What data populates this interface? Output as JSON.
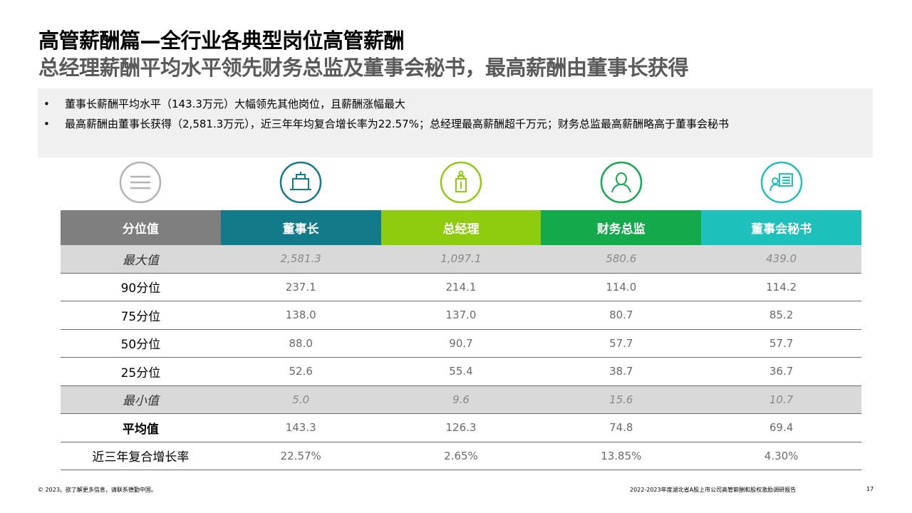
{
  "header": {
    "title": "高管薪酬篇—全行业各典型岗位高管薪酬",
    "subtitle": "总经理薪酬平均水平领先财务总监及董事会秘书，最高薪酬由董事长获得"
  },
  "bullets": [
    "董事长薪酬平均水平（143.3万元）大幅领先其他岗位，且薪酬涨幅最大",
    "最高薪酬由董事长获得（2,581.3万元），近三年年均复合增长率为22.57%；总经理最高薪酬超千万元；财务总监最高薪酬略高于董事会秘书"
  ],
  "icons": [
    "menu-icon",
    "chairman-icon",
    "general-manager-icon",
    "cfo-icon",
    "board-secretary-icon"
  ],
  "table": {
    "columns": [
      {
        "label": "分位值",
        "color": "#7f7f7f"
      },
      {
        "label": "董事长",
        "color": "#137a8a"
      },
      {
        "label": "总经理",
        "color": "#8fcb0f"
      },
      {
        "label": "财务总监",
        "color": "#14a94a"
      },
      {
        "label": "董事会秘书",
        "color": "#1ec0bb"
      }
    ],
    "rows": [
      {
        "label": "最大值",
        "values": [
          "2,581.3",
          "1,097.1",
          "580.6",
          "439.0"
        ]
      },
      {
        "label": "90分位",
        "values": [
          "237.1",
          "214.1",
          "114.0",
          "114.2"
        ]
      },
      {
        "label": "75分位",
        "values": [
          "138.0",
          "137.0",
          "80.7",
          "85.2"
        ]
      },
      {
        "label": "50分位",
        "values": [
          "88.0",
          "90.7",
          "57.7",
          "57.7"
        ]
      },
      {
        "label": "25分位",
        "values": [
          "52.6",
          "55.4",
          "38.7",
          "36.7"
        ]
      },
      {
        "label": "最小值",
        "values": [
          "5.0",
          "9.6",
          "15.6",
          "10.7"
        ]
      },
      {
        "label": "平均值",
        "values": [
          "143.3",
          "126.3",
          "74.8",
          "69.4"
        ]
      },
      {
        "label": "近三年复合增长率",
        "values": [
          "22.57%",
          "2.65%",
          "13.85%",
          "4.30%"
        ]
      }
    ]
  },
  "footer": {
    "copyright": "© 2023。欲了解更多信息，请联系德勤中国。",
    "report": "2022-2023年度湖北省A股上市公司高管薪酬和股权激励调研报告",
    "page": "17"
  }
}
